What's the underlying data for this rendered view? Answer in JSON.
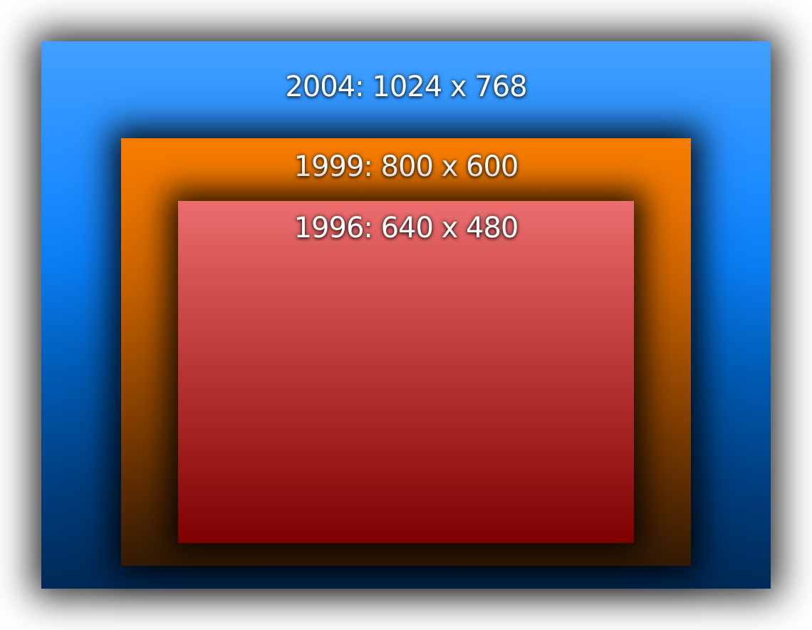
{
  "resolutions": [
    {
      "year": "2004",
      "label": "2004: 1024 x 768",
      "width": 1024,
      "height": 768,
      "color": "#1f8cff"
    },
    {
      "year": "1999",
      "label": "1999: 800 x 600",
      "width": 800,
      "height": 600,
      "color": "#f77d00"
    },
    {
      "year": "1996",
      "label": "1996: 640 x 480",
      "width": 640,
      "height": 480,
      "color": "#d75555"
    }
  ]
}
